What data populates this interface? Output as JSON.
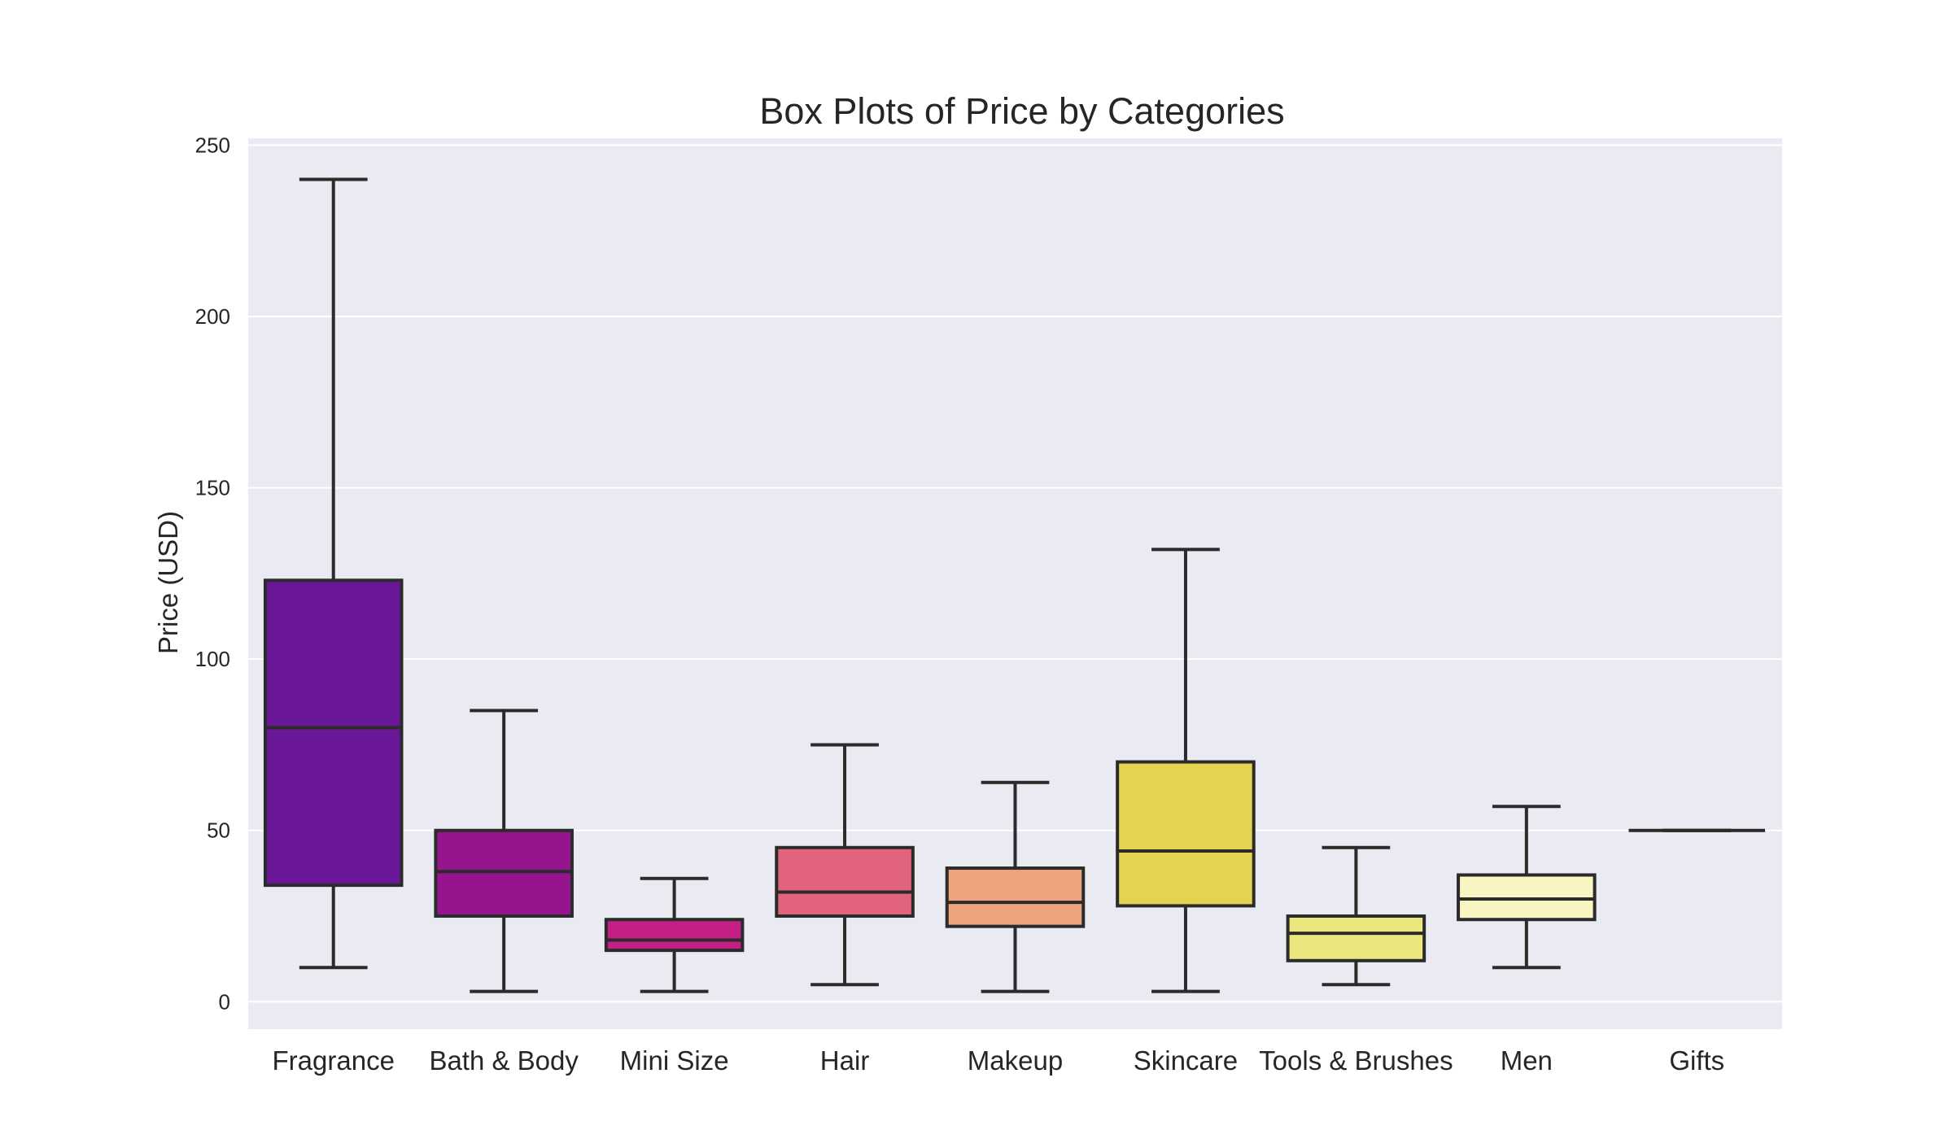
{
  "chart_data": {
    "type": "box",
    "title": "Box Plots of Price by Categories",
    "xlabel": "",
    "ylabel": "Price (USD)",
    "ylim": [
      -8,
      252
    ],
    "yticks": [
      0,
      50,
      100,
      150,
      200,
      250
    ],
    "grid": true,
    "background": "#eaeaf2",
    "line_color": "#2b2b2b",
    "categories": [
      "Fragrance",
      "Bath & Body",
      "Mini Size",
      "Hair",
      "Makeup",
      "Skincare",
      "Tools & Brushes",
      "Men",
      "Gifts"
    ],
    "boxes": [
      {
        "category": "Fragrance",
        "whisker_low": 10,
        "q1": 34,
        "median": 80,
        "q3": 123,
        "whisker_high": 240,
        "color": "#6a1797"
      },
      {
        "category": "Bath & Body",
        "whisker_low": 3,
        "q1": 25,
        "median": 38,
        "q3": 50,
        "whisker_high": 85,
        "color": "#96158f"
      },
      {
        "category": "Mini Size",
        "whisker_low": 3,
        "q1": 15,
        "median": 18,
        "q3": 24,
        "whisker_high": 36,
        "color": "#c51f86"
      },
      {
        "category": "Hair",
        "whisker_low": 5,
        "q1": 25,
        "median": 32,
        "q3": 45,
        "whisker_high": 75,
        "color": "#e1637e"
      },
      {
        "category": "Makeup",
        "whisker_low": 3,
        "q1": 22,
        "median": 29,
        "q3": 39,
        "whisker_high": 64,
        "color": "#eda47c"
      },
      {
        "category": "Skincare",
        "whisker_low": 3,
        "q1": 28,
        "median": 44,
        "q3": 70,
        "whisker_high": 132,
        "color": "#e4d34e"
      },
      {
        "category": "Tools & Brushes",
        "whisker_low": 5,
        "q1": 12,
        "median": 20,
        "q3": 25,
        "whisker_high": 45,
        "color": "#ebe77e"
      },
      {
        "category": "Men",
        "whisker_low": 10,
        "q1": 24,
        "median": 30,
        "q3": 37,
        "whisker_high": 57,
        "color": "#f8f5c2"
      },
      {
        "category": "Gifts",
        "whisker_low": 50,
        "q1": 50,
        "median": 50,
        "q3": 50,
        "whisker_high": 50,
        "color": "#fffbe0"
      }
    ]
  }
}
